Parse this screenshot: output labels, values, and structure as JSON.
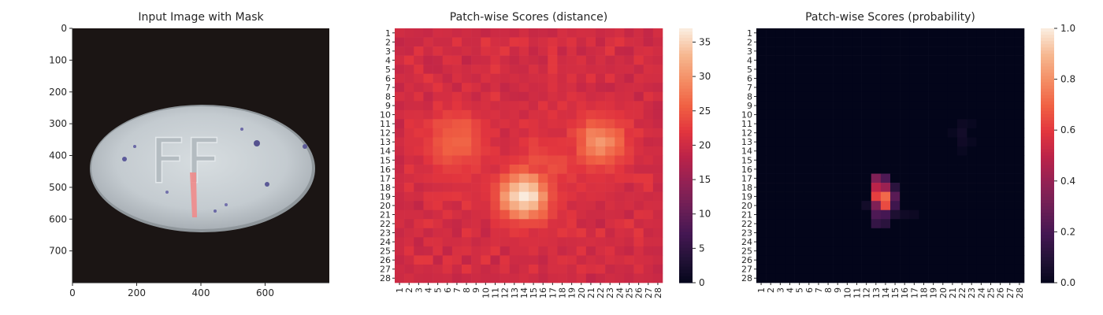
{
  "panels": [
    {
      "title": "Input Image with Mask"
    },
    {
      "title": "Patch-wise Scores (distance)"
    },
    {
      "title": "Patch-wise Scores (probability)"
    }
  ],
  "chart_data": [
    {
      "type": "image",
      "title": "Input Image with Mask",
      "xlim": [
        0,
        800
      ],
      "ylim": [
        800,
        0
      ],
      "xticks": [
        0,
        200,
        400,
        600
      ],
      "yticks": [
        0,
        100,
        200,
        300,
        400,
        500,
        600,
        700
      ],
      "content": {
        "pill_emboss_text": "FF",
        "background_color": "#1b1514",
        "pill_color": "#c9d0d4",
        "mask_color": "#f08b8b"
      }
    },
    {
      "type": "heatmap",
      "title": "Patch-wise Scores (distance)",
      "x_categories": [
        "1",
        "2",
        "3",
        "4",
        "5",
        "6",
        "7",
        "8",
        "9",
        "10",
        "11",
        "12",
        "13",
        "14",
        "15",
        "16",
        "17",
        "18",
        "19",
        "20",
        "21",
        "22",
        "23",
        "24",
        "25",
        "26",
        "27",
        "28"
      ],
      "y_categories": [
        "1",
        "2",
        "3",
        "4",
        "5",
        "6",
        "7",
        "8",
        "9",
        "10",
        "11",
        "12",
        "13",
        "14",
        "15",
        "16",
        "17",
        "18",
        "19",
        "20",
        "21",
        "22",
        "23",
        "24",
        "25",
        "26",
        "27",
        "28"
      ],
      "colorbar": {
        "min": 0,
        "max": 37,
        "ticks": [
          0,
          5,
          10,
          15,
          20,
          25,
          30,
          35
        ],
        "colormap": "rocket"
      },
      "baseline": 20,
      "hotspots": [
        {
          "row": 19,
          "col": 14,
          "value": 37,
          "spread": 1.9
        },
        {
          "row": 13,
          "col": 22,
          "value": 30,
          "spread": 2.0
        },
        {
          "row": 13,
          "col": 7,
          "value": 27,
          "spread": 2.3
        },
        {
          "row": 16,
          "col": 16,
          "value": 24,
          "spread": 3.0
        }
      ]
    },
    {
      "type": "heatmap",
      "title": "Patch-wise Scores (probability)",
      "x_categories": [
        "1",
        "2",
        "3",
        "4",
        "5",
        "6",
        "7",
        "8",
        "9",
        "10",
        "11",
        "12",
        "13",
        "14",
        "15",
        "16",
        "17",
        "18",
        "19",
        "20",
        "21",
        "22",
        "23",
        "24",
        "25",
        "26",
        "27",
        "28"
      ],
      "y_categories": [
        "1",
        "2",
        "3",
        "4",
        "5",
        "6",
        "7",
        "8",
        "9",
        "10",
        "11",
        "12",
        "13",
        "14",
        "15",
        "16",
        "17",
        "18",
        "19",
        "20",
        "21",
        "22",
        "23",
        "24",
        "25",
        "26",
        "27",
        "28"
      ],
      "colorbar": {
        "min": 0.0,
        "max": 1.0,
        "ticks": [
          "0.0",
          "0.2",
          "0.4",
          "0.6",
          "0.8",
          "1.0"
        ],
        "colormap": "rocket"
      },
      "cells": [
        {
          "row": 17,
          "col": 13,
          "value": 0.35
        },
        {
          "row": 17,
          "col": 14,
          "value": 0.22
        },
        {
          "row": 18,
          "col": 13,
          "value": 0.5
        },
        {
          "row": 18,
          "col": 14,
          "value": 0.42
        },
        {
          "row": 18,
          "col": 15,
          "value": 0.12
        },
        {
          "row": 19,
          "col": 13,
          "value": 0.62
        },
        {
          "row": 19,
          "col": 14,
          "value": 0.72
        },
        {
          "row": 19,
          "col": 15,
          "value": 0.25
        },
        {
          "row": 20,
          "col": 13,
          "value": 0.35
        },
        {
          "row": 20,
          "col": 14,
          "value": 0.65
        },
        {
          "row": 20,
          "col": 15,
          "value": 0.18
        },
        {
          "row": 21,
          "col": 13,
          "value": 0.22
        },
        {
          "row": 21,
          "col": 14,
          "value": 0.2
        },
        {
          "row": 21,
          "col": 15,
          "value": 0.08
        },
        {
          "row": 22,
          "col": 13,
          "value": 0.15
        },
        {
          "row": 22,
          "col": 14,
          "value": 0.12
        },
        {
          "row": 20,
          "col": 12,
          "value": 0.05
        },
        {
          "row": 21,
          "col": 16,
          "value": 0.04
        },
        {
          "row": 21,
          "col": 17,
          "value": 0.03
        },
        {
          "row": 11,
          "col": 22,
          "value": 0.03
        },
        {
          "row": 11,
          "col": 23,
          "value": 0.02
        },
        {
          "row": 12,
          "col": 22,
          "value": 0.05
        },
        {
          "row": 12,
          "col": 21,
          "value": 0.02
        },
        {
          "row": 13,
          "col": 22,
          "value": 0.04
        },
        {
          "row": 13,
          "col": 23,
          "value": 0.02
        },
        {
          "row": 14,
          "col": 22,
          "value": 0.02
        }
      ]
    }
  ]
}
